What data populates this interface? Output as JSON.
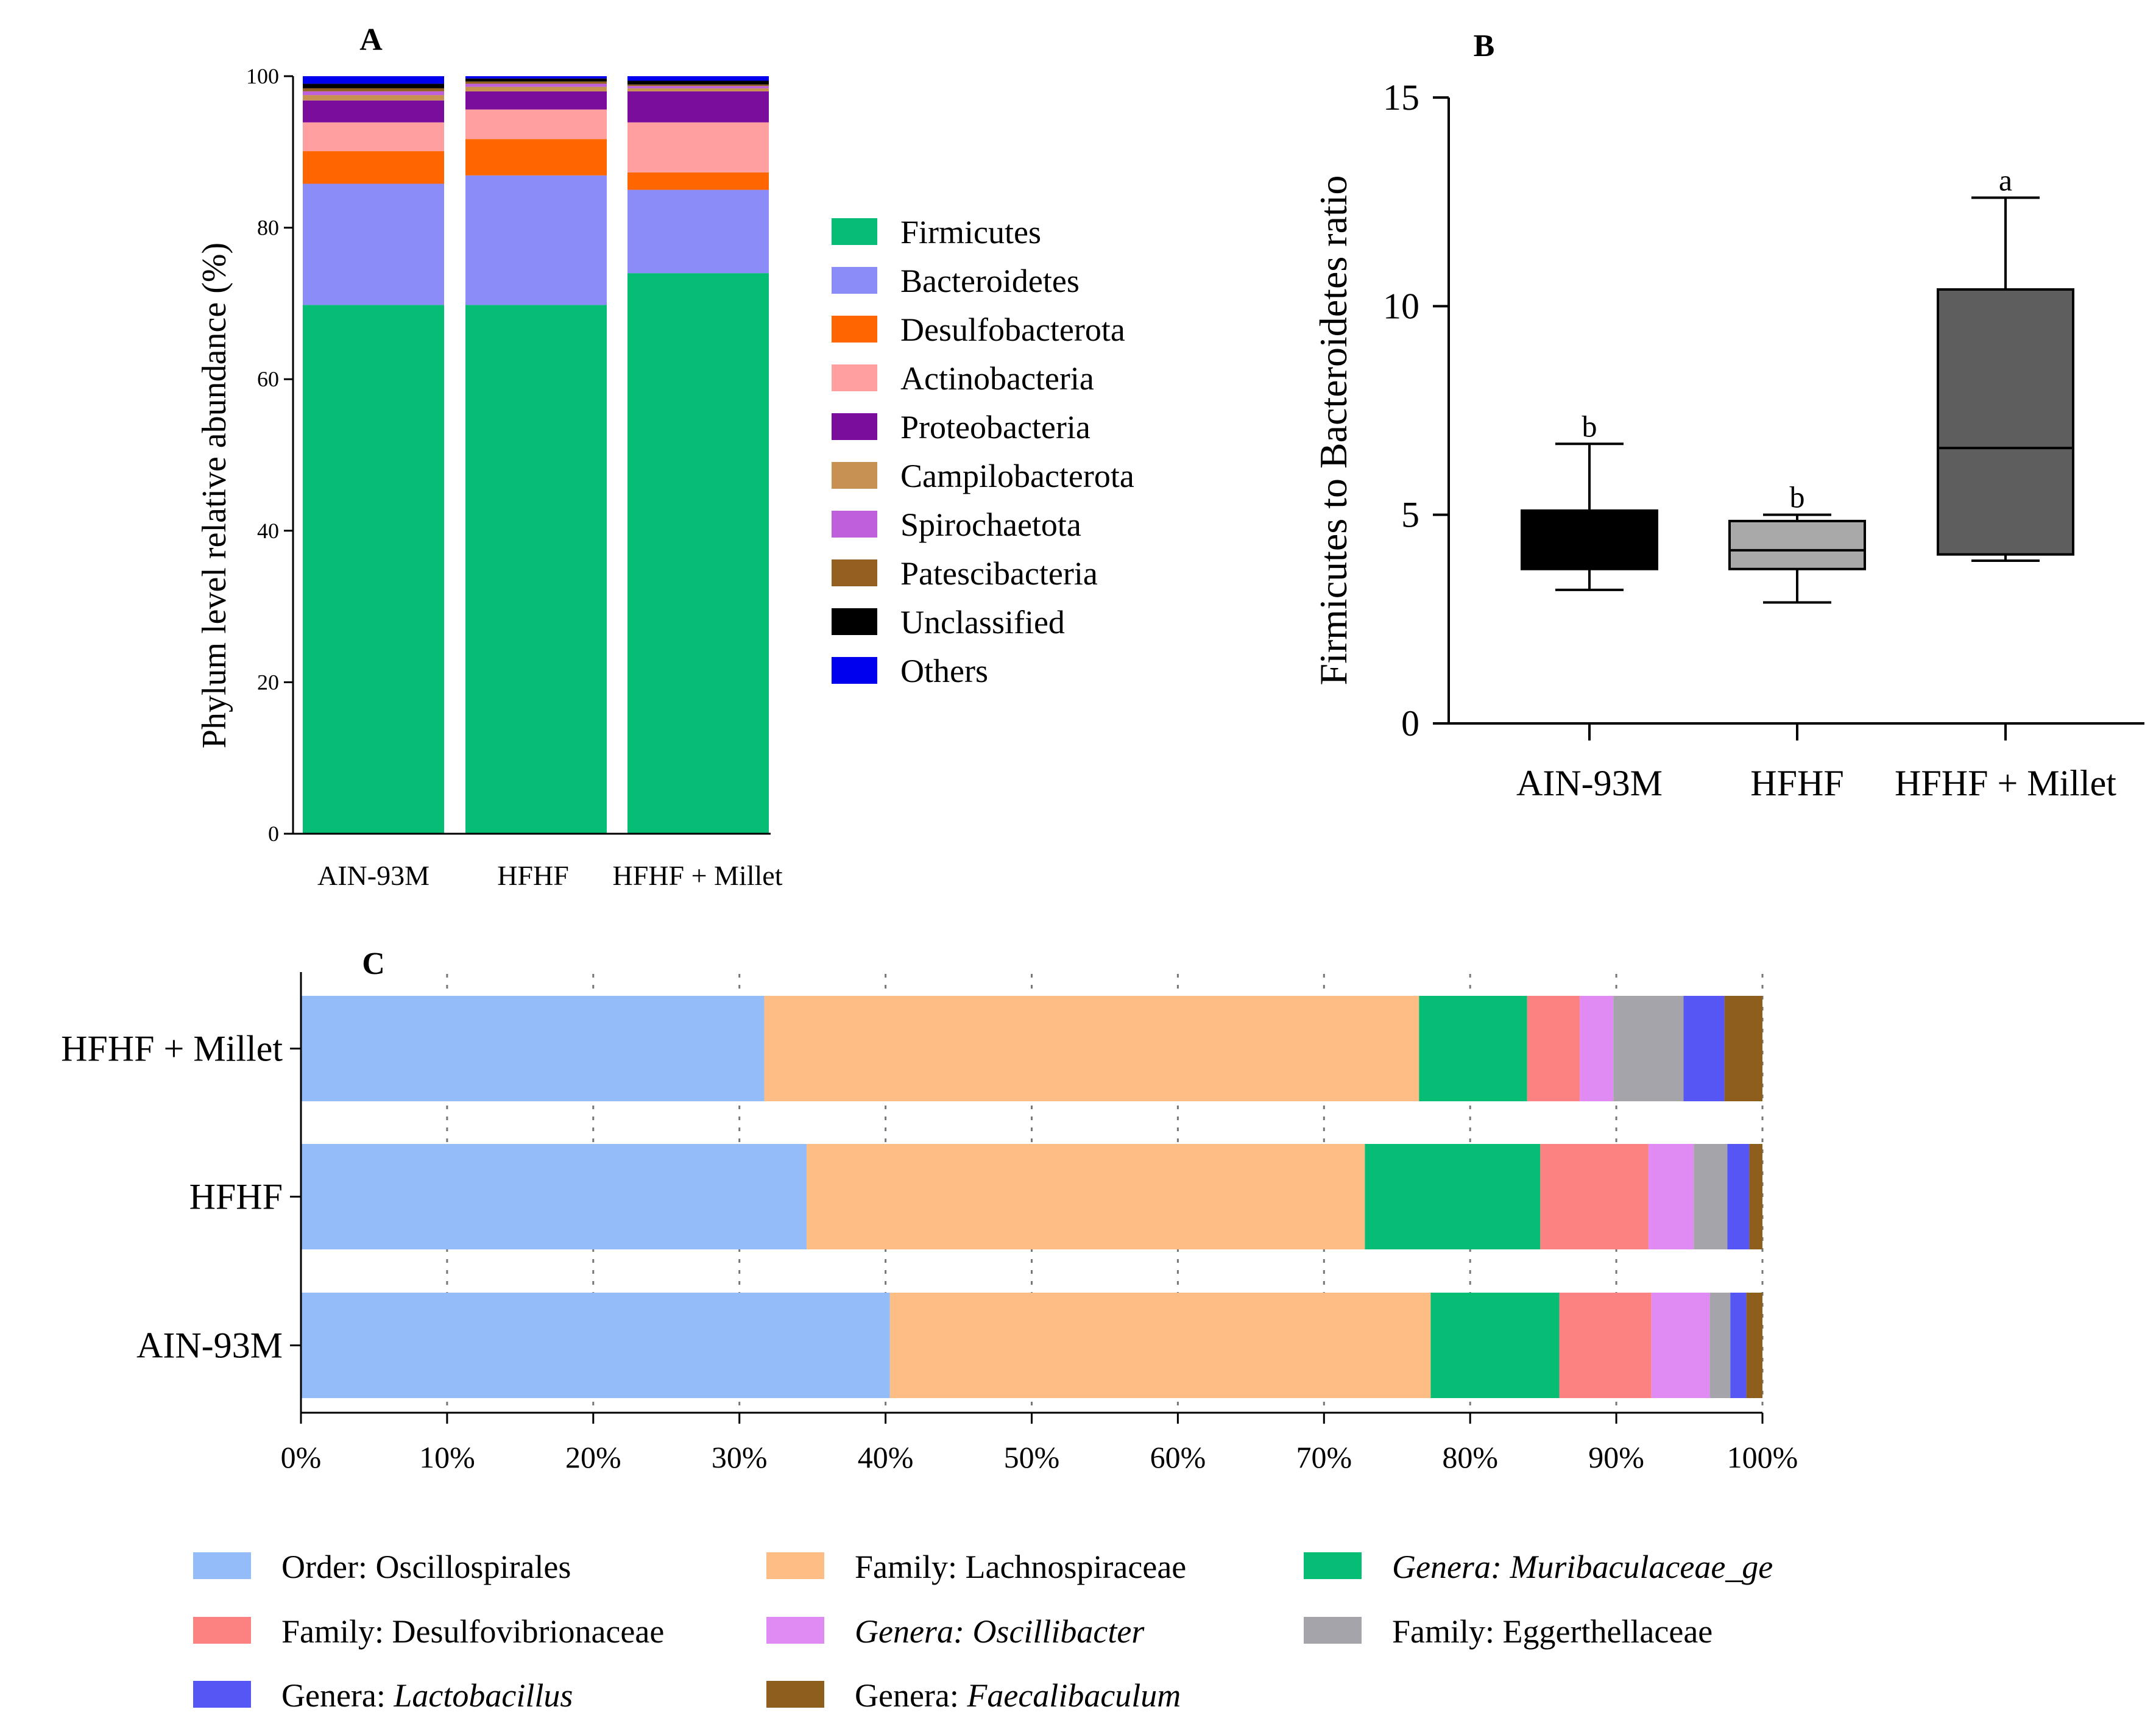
{
  "chart_data": [
    {
      "panel": "A",
      "type": "bar",
      "stacked": true,
      "ylabel": "Phylum level relative abundance (%)",
      "ylim": [
        0,
        100
      ],
      "yticks": [
        "0",
        "20",
        "40",
        "60",
        "80",
        "100"
      ],
      "categories": [
        "AIN-93M",
        "HFHF",
        "HFHF + Millet"
      ],
      "series": [
        {
          "name": "Firmicutes",
          "color": "#06bd75",
          "values": [
            69.8,
            69.8,
            74.0
          ]
        },
        {
          "name": "Bacteroidetes",
          "color": "#8c8cf8",
          "values": [
            16.0,
            17.1,
            11.0
          ]
        },
        {
          "name": "Desulfobacterota",
          "color": "#ff6600",
          "values": [
            4.3,
            4.8,
            2.3
          ]
        },
        {
          "name": "Actinobacteria",
          "color": "#ff9f9f",
          "values": [
            3.8,
            3.9,
            6.6
          ]
        },
        {
          "name": "Proteobacteria",
          "color": "#7b0d9c",
          "values": [
            2.9,
            2.4,
            4.1
          ]
        },
        {
          "name": "Campilobacterota",
          "color": "#c79152",
          "values": [
            0.7,
            0.6,
            0.4
          ]
        },
        {
          "name": "Spirochaetota",
          "color": "#bf5fdb",
          "values": [
            0.5,
            0.4,
            0.3
          ]
        },
        {
          "name": "Patescibacteria",
          "color": "#936020",
          "values": [
            0.4,
            0.3,
            0.2
          ]
        },
        {
          "name": "Unclassified",
          "color": "#000000",
          "values": [
            0.6,
            0.4,
            0.5
          ]
        },
        {
          "name": "Others",
          "color": "#0000ee",
          "values": [
            1.0,
            0.3,
            0.6
          ]
        }
      ]
    },
    {
      "panel": "B",
      "type": "box",
      "ylabel": "Firmicutes to Bacteroidetes ratio",
      "ylim": [
        0,
        15
      ],
      "yticks": [
        "0",
        "5",
        "10",
        "15"
      ],
      "categories": [
        "AIN-93M",
        "HFHF",
        "HFHF + Millet"
      ],
      "boxes": [
        {
          "name": "AIN-93M",
          "min": 3.2,
          "q1": 3.7,
          "median": 3.75,
          "q3": 5.1,
          "max": 6.7,
          "color": "#000000",
          "label": "b"
        },
        {
          "name": "HFHF",
          "min": 2.9,
          "q1": 3.7,
          "median": 4.15,
          "q3": 4.85,
          "max": 5.0,
          "color": "#a9a9a9",
          "label": "b"
        },
        {
          "name": "HFHF + Millet",
          "min": 3.9,
          "q1": 4.05,
          "median": 6.6,
          "q3": 10.4,
          "max": 12.6,
          "color": "#5e5e5e",
          "label": "a"
        }
      ]
    },
    {
      "panel": "C",
      "type": "bar",
      "orientation": "horizontal",
      "stacked": true,
      "xlim": [
        0,
        100
      ],
      "xticks": [
        "0%",
        "10%",
        "20%",
        "30%",
        "40%",
        "50%",
        "60%",
        "70%",
        "80%",
        "90%",
        "100%"
      ],
      "categories": [
        "HFHF + Millet",
        "HFHF",
        "AIN-93M"
      ],
      "series": [
        {
          "name": "Order: Oscillospirales",
          "prefix": "Order: ",
          "taxon": "Oscillospirales",
          "italic": false,
          "color": "#93bcf8",
          "values": [
            31.7,
            34.6,
            40.3
          ]
        },
        {
          "name": "Family: Lachnospiraceae",
          "prefix": "Family: ",
          "taxon": "Lachnospiraceae",
          "italic": false,
          "color": "#fdbd84",
          "values": [
            44.8,
            38.2,
            37.0
          ]
        },
        {
          "name": "Genera: Muribaculaceae_ge",
          "prefix": "Genera: ",
          "taxon": "Muribaculaceae_ge",
          "italic": true,
          "italicPrefix": true,
          "color": "#06bd75",
          "values": [
            7.4,
            12.0,
            8.8
          ]
        },
        {
          "name": "Family: Desulfovibrionaceae",
          "prefix": "Family: ",
          "taxon": "Desulfovibrionaceae",
          "italic": false,
          "color": "#fc8282",
          "values": [
            3.6,
            7.4,
            6.3
          ]
        },
        {
          "name": "Genera: Oscillibacter",
          "prefix": "Genera: ",
          "taxon": "Oscillibacter",
          "italic": true,
          "italicPrefix": true,
          "color": "#df8bf3",
          "values": [
            2.3,
            3.1,
            4.0
          ]
        },
        {
          "name": "Family: Eggerthellaceae",
          "prefix": "Family: ",
          "taxon": "Eggerthellaceae",
          "italic": false,
          "color": "#a4a4aa",
          "values": [
            4.8,
            2.3,
            1.4
          ]
        },
        {
          "name": "Genera: Lactobacillus",
          "prefix": "Genera: ",
          "taxon": "Lactobacillus",
          "italic": true,
          "italicPrefix": false,
          "color": "#5656f5",
          "values": [
            2.8,
            1.5,
            1.1
          ]
        },
        {
          "name": "Genera: Faecalibaculum",
          "prefix": "Genera: ",
          "taxon": "Faecalibaculum",
          "italic": true,
          "italicPrefix": false,
          "color": "#8e5f1c",
          "values": [
            2.6,
            0.9,
            1.1
          ]
        }
      ]
    }
  ]
}
